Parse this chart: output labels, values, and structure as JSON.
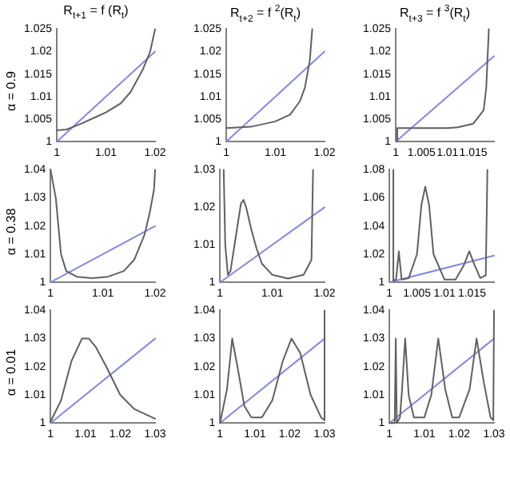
{
  "chart_data": [
    {
      "type": "line",
      "title": "R$_{t+1}$ = f (R$_{t}$)",
      "ylabel": "α = 0.9",
      "xlim": [
        1,
        1.02
      ],
      "ylim": [
        1,
        1.025
      ],
      "xticks": [
        1,
        1.01,
        1.02
      ],
      "yticks": [
        1,
        1.005,
        1.01,
        1.015,
        1.02,
        1.025
      ],
      "series": [
        {
          "color": "#606060",
          "x": [
            1,
            1.002,
            1.005,
            1.008,
            1.01,
            1.013,
            1.015,
            1.0175,
            1.019,
            1.02
          ],
          "values": [
            1.0025,
            1.0027,
            1.004,
            1.0055,
            1.0065,
            1.0085,
            1.011,
            1.016,
            1.02,
            1.025
          ]
        },
        {
          "color": "#8888dd",
          "x": [
            1,
            1.02
          ],
          "values": [
            1,
            1.02
          ]
        }
      ]
    },
    {
      "type": "line",
      "title": "R$_{t+2}$ = f $^{2}$(R$_{t}$)",
      "xlim": [
        1,
        1.02
      ],
      "ylim": [
        1,
        1.025
      ],
      "xticks": [
        1,
        1.01,
        1.02
      ],
      "yticks": [
        1,
        1.005,
        1.01,
        1.015,
        1.02,
        1.025
      ],
      "series": [
        {
          "color": "#606060",
          "x": [
            1,
            1.005,
            1.01,
            1.013,
            1.015,
            1.016,
            1.017,
            1.0175
          ],
          "values": [
            1.003,
            1.0033,
            1.0045,
            1.006,
            1.009,
            1.012,
            1.018,
            1.025
          ]
        },
        {
          "color": "#8888dd",
          "x": [
            1,
            1.02
          ],
          "values": [
            1,
            1.02
          ]
        }
      ]
    },
    {
      "type": "line",
      "title": "R$_{t+3}$ = f $^{3}$(R$_{t}$)",
      "xlim": [
        1,
        1.019
      ],
      "ylim": [
        1,
        1.025
      ],
      "xticks": [
        1,
        1.005,
        1.01,
        1.015
      ],
      "yticks": [
        1,
        1.005,
        1.01,
        1.015,
        1.02,
        1.025
      ],
      "series": [
        {
          "color": "#606060",
          "x": [
            1.0003,
            1.0003,
            1.005,
            1.01,
            1.012,
            1.015,
            1.017,
            1.0175,
            1.018
          ],
          "values": [
            1,
            1.003,
            1.003,
            1.003,
            1.0032,
            1.004,
            1.007,
            1.012,
            1.025
          ]
        },
        {
          "color": "#8888dd",
          "x": [
            1,
            1.019
          ],
          "values": [
            1,
            1.019
          ]
        }
      ]
    },
    {
      "type": "line",
      "ylabel": "α = 0.38",
      "xlim": [
        1,
        1.02
      ],
      "ylim": [
        1,
        1.04
      ],
      "xticks": [
        1,
        1.01,
        1.02
      ],
      "yticks": [
        1,
        1.01,
        1.02,
        1.03,
        1.04
      ],
      "series": [
        {
          "color": "#606060",
          "x": [
            1,
            1.001,
            1.002,
            1.003,
            1.005,
            1.008,
            1.011,
            1.014,
            1.016,
            1.018,
            1.019,
            1.0198,
            1.02
          ],
          "values": [
            1.04,
            1.03,
            1.01,
            1.004,
            1.002,
            1.0015,
            1.002,
            1.004,
            1.008,
            1.017,
            1.025,
            1.033,
            1.04
          ]
        },
        {
          "color": "#8888dd",
          "x": [
            1,
            1.02
          ],
          "values": [
            1,
            1.02
          ]
        }
      ]
    },
    {
      "type": "line",
      "xlim": [
        1,
        1.02
      ],
      "ylim": [
        1,
        1.03
      ],
      "xticks": [
        1,
        1.01,
        1.02
      ],
      "yticks": [
        1,
        1.01,
        1.02,
        1.03
      ],
      "series": [
        {
          "color": "#606060",
          "x": [
            1.0007,
            1.001,
            1.0015,
            1.002,
            1.003,
            1.004,
            1.0045,
            1.005,
            1.006,
            1.007,
            1.008,
            1.01,
            1.013,
            1.016,
            1.0175,
            1.0178
          ],
          "values": [
            1.03,
            1.01,
            1.002,
            1.003,
            1.012,
            1.021,
            1.022,
            1.02,
            1.014,
            1.009,
            1.005,
            1.002,
            1.001,
            1.002,
            1.006,
            1.03
          ]
        },
        {
          "color": "#8888dd",
          "x": [
            1,
            1.02
          ],
          "values": [
            1,
            1.02
          ]
        }
      ]
    },
    {
      "type": "line",
      "xlim": [
        1,
        1.019
      ],
      "ylim": [
        1,
        1.08
      ],
      "xticks": [
        1,
        1.005,
        1.01,
        1.015
      ],
      "yticks": [
        1,
        1.02,
        1.04,
        1.06,
        1.08
      ],
      "series": [
        {
          "color": "#606060",
          "x": [
            1.0007,
            1.0007,
            1.0012,
            1.0017,
            1.0022,
            1.0035,
            1.005,
            1.0058,
            1.0065,
            1.0072,
            1.008,
            1.01,
            1.012,
            1.0135,
            1.0145,
            1.0155,
            1.0165,
            1.0175,
            1.0178
          ],
          "values": [
            1.08,
            1.001,
            1.002,
            1.022,
            1.002,
            1.003,
            1.02,
            1.055,
            1.068,
            1.055,
            1.02,
            1.002,
            1.002,
            1.012,
            1.022,
            1.012,
            1.003,
            1.005,
            1.08
          ]
        },
        {
          "color": "#8888dd",
          "x": [
            1,
            1.019
          ],
          "values": [
            1,
            1.019
          ]
        }
      ]
    },
    {
      "type": "line",
      "ylabel": "α = 0.01",
      "xlim": [
        1,
        1.03
      ],
      "ylim": [
        1,
        1.04
      ],
      "xticks": [
        1,
        1.01,
        1.02,
        1.03
      ],
      "yticks": [
        1,
        1.01,
        1.02,
        1.03,
        1.04
      ],
      "series": [
        {
          "color": "#606060",
          "x": [
            1,
            1.003,
            1.006,
            1.009,
            1.011,
            1.013,
            1.016,
            1.02,
            1.024,
            1.03
          ],
          "values": [
            1.0005,
            1.008,
            1.022,
            1.03,
            1.03,
            1.027,
            1.02,
            1.01,
            1.005,
            1.0015
          ]
        },
        {
          "color": "#8888dd",
          "x": [
            1,
            1.03
          ],
          "values": [
            1,
            1.03
          ]
        }
      ]
    },
    {
      "type": "line",
      "xlim": [
        1,
        1.03
      ],
      "ylim": [
        1,
        1.04
      ],
      "xticks": [
        1,
        1.01,
        1.02,
        1.03
      ],
      "yticks": [
        1,
        1.01,
        1.02,
        1.03,
        1.04
      ],
      "series": [
        {
          "color": "#606060",
          "x": [
            1,
            1.002,
            1.0035,
            1.005,
            1.007,
            1.009,
            1.012,
            1.015,
            1.018,
            1.0205,
            1.023,
            1.026,
            1.029,
            1.03,
            1.03
          ],
          "values": [
            1,
            1.012,
            1.03,
            1.02,
            1.006,
            1.002,
            1.002,
            1.008,
            1.022,
            1.03,
            1.025,
            1.01,
            1.002,
            1.001,
            1.04
          ]
        },
        {
          "color": "#8888dd",
          "x": [
            1,
            1.03
          ],
          "values": [
            1,
            1.03
          ]
        }
      ]
    },
    {
      "type": "line",
      "xlim": [
        1,
        1.03
      ],
      "ylim": [
        1,
        1.04
      ],
      "xticks": [
        1,
        1.01,
        1.02,
        1.03
      ],
      "yticks": [
        1,
        1.01,
        1.02,
        1.03,
        1.04
      ],
      "series": [
        {
          "color": "#606060",
          "x": [
            1,
            1.0015,
            1.0018,
            1.0021,
            1.003,
            1.0035,
            1.0045,
            1.0055,
            1.007,
            1.01,
            1.012,
            1.014,
            1.016,
            1.018,
            1.02,
            1.023,
            1.025,
            1.027,
            1.029,
            1.0298,
            1.03
          ],
          "values": [
            1,
            1,
            1.03,
            1,
            1.002,
            1.01,
            1.03,
            1.01,
            1.002,
            1.002,
            1.01,
            1.03,
            1.012,
            1.002,
            1.002,
            1.012,
            1.03,
            1.015,
            1.002,
            1.001,
            1.04
          ]
        },
        {
          "color": "#8888dd",
          "x": [
            1,
            1.03
          ],
          "values": [
            1,
            1.03
          ]
        }
      ]
    }
  ]
}
